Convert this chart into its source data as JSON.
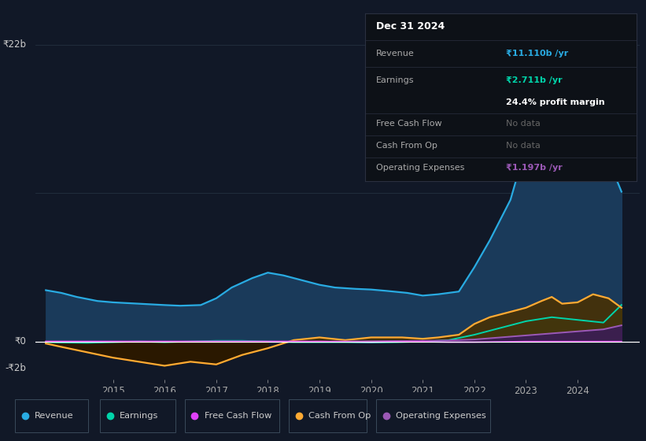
{
  "background_color": "#111827",
  "plot_bg_color": "#111827",
  "y_label_top": "₹22b",
  "y_label_zero": "₹0",
  "y_label_bottom": "-₹2b",
  "y_min": -2.8,
  "y_max": 24.0,
  "x_ticks": [
    2015,
    2016,
    2017,
    2018,
    2019,
    2020,
    2021,
    2022,
    2023,
    2024
  ],
  "revenue_color": "#29abe2",
  "earnings_color": "#00d4aa",
  "free_cash_flow_color": "#e040fb",
  "cash_from_op_color": "#ffaa33",
  "operating_expenses_color": "#9b59b6",
  "revenue_fill_color": "#1a3a5a",
  "info_box": {
    "bg_color": "#0d1117",
    "title": "Dec 31 2024",
    "revenue_label": "Revenue",
    "revenue_value": "₹11.110b /yr",
    "revenue_value_color": "#29abe2",
    "earnings_label": "Earnings",
    "earnings_value": "₹2.711b /yr",
    "earnings_value_color": "#00d4aa",
    "profit_margin": "24.4% profit margin",
    "free_cash_flow_label": "Free Cash Flow",
    "free_cash_flow_value": "No data",
    "cash_from_op_label": "Cash From Op",
    "cash_from_op_value": "No data",
    "op_exp_label": "Operating Expenses",
    "op_exp_value": "₹1.197b /yr",
    "op_exp_value_color": "#9b59b6"
  },
  "legend": [
    {
      "label": "Revenue",
      "color": "#29abe2"
    },
    {
      "label": "Earnings",
      "color": "#00d4aa"
    },
    {
      "label": "Free Cash Flow",
      "color": "#e040fb"
    },
    {
      "label": "Cash From Op",
      "color": "#ffaa33"
    },
    {
      "label": "Operating Expenses",
      "color": "#9b59b6"
    }
  ],
  "revenue_x": [
    2013.7,
    2014.0,
    2014.3,
    2014.7,
    2015.0,
    2015.5,
    2016.0,
    2016.3,
    2016.7,
    2017.0,
    2017.3,
    2017.7,
    2018.0,
    2018.3,
    2018.7,
    2019.0,
    2019.3,
    2019.7,
    2020.0,
    2020.3,
    2020.7,
    2021.0,
    2021.3,
    2021.7,
    2022.0,
    2022.3,
    2022.7,
    2023.0,
    2023.3,
    2023.7,
    2024.0,
    2024.3,
    2024.7,
    2024.85
  ],
  "revenue_y": [
    3.8,
    3.6,
    3.3,
    3.0,
    2.9,
    2.8,
    2.7,
    2.65,
    2.7,
    3.2,
    4.0,
    4.7,
    5.1,
    4.9,
    4.5,
    4.2,
    4.0,
    3.9,
    3.85,
    3.75,
    3.6,
    3.4,
    3.5,
    3.7,
    5.5,
    7.5,
    10.5,
    14.5,
    20.5,
    22.0,
    18.0,
    14.0,
    12.5,
    11.1
  ],
  "earnings_x": [
    2013.7,
    2014.0,
    2014.5,
    2015.0,
    2015.5,
    2016.0,
    2016.5,
    2017.0,
    2017.5,
    2018.0,
    2018.5,
    2019.0,
    2019.5,
    2020.0,
    2020.5,
    2021.0,
    2021.5,
    2022.0,
    2022.5,
    2023.0,
    2023.5,
    2024.0,
    2024.5,
    2024.85
  ],
  "earnings_y": [
    -0.05,
    -0.08,
    -0.1,
    -0.05,
    0.0,
    -0.05,
    0.0,
    0.05,
    0.05,
    0.0,
    -0.05,
    -0.05,
    -0.05,
    -0.08,
    -0.05,
    0.0,
    0.1,
    0.5,
    1.0,
    1.5,
    1.8,
    1.6,
    1.4,
    2.71
  ],
  "free_cash_flow_x": [
    2013.7,
    2015.0,
    2016.0,
    2017.0,
    2018.0,
    2019.0,
    2019.5,
    2020.0,
    2020.5,
    2021.0,
    2021.2,
    2021.5,
    2022.0,
    2023.0,
    2024.0,
    2024.85
  ],
  "free_cash_flow_y": [
    0.0,
    0.0,
    0.0,
    0.0,
    0.0,
    0.0,
    -0.03,
    -0.05,
    -0.02,
    0.0,
    -0.03,
    -0.05,
    -0.05,
    0.0,
    0.0,
    0.0
  ],
  "cash_from_op_x": [
    2013.7,
    2014.0,
    2014.5,
    2015.0,
    2015.5,
    2016.0,
    2016.5,
    2017.0,
    2017.5,
    2018.0,
    2018.5,
    2019.0,
    2019.5,
    2020.0,
    2020.3,
    2020.6,
    2021.0,
    2021.3,
    2021.7,
    2022.0,
    2022.3,
    2022.7,
    2023.0,
    2023.3,
    2023.5,
    2023.7,
    2024.0,
    2024.3,
    2024.6,
    2024.85
  ],
  "cash_from_op_y": [
    -0.15,
    -0.4,
    -0.8,
    -1.2,
    -1.5,
    -1.8,
    -1.5,
    -1.7,
    -1.0,
    -0.5,
    0.1,
    0.3,
    0.1,
    0.3,
    0.3,
    0.3,
    0.2,
    0.3,
    0.5,
    1.3,
    1.8,
    2.2,
    2.5,
    3.0,
    3.3,
    2.8,
    2.9,
    3.5,
    3.2,
    2.5
  ],
  "op_exp_x": [
    2013.7,
    2015.0,
    2016.0,
    2017.0,
    2018.0,
    2019.0,
    2020.0,
    2020.5,
    2021.0,
    2021.5,
    2022.0,
    2022.5,
    2023.0,
    2023.5,
    2024.0,
    2024.5,
    2024.85
  ],
  "op_exp_y": [
    0.0,
    0.0,
    0.0,
    0.0,
    0.0,
    0.0,
    0.02,
    0.04,
    0.05,
    0.08,
    0.15,
    0.3,
    0.45,
    0.6,
    0.75,
    0.9,
    1.197
  ]
}
